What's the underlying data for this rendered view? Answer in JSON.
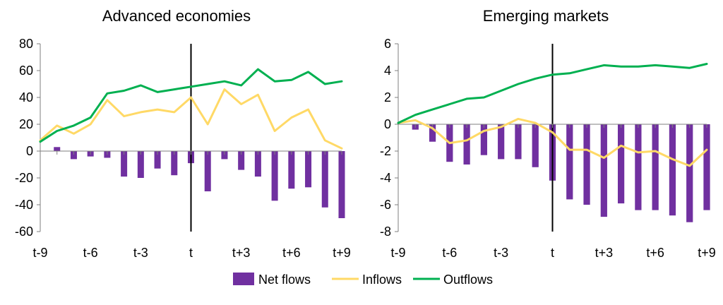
{
  "colors": {
    "net": "#7030a0",
    "inflows": "#ffd966",
    "outflows": "#00b050"
  },
  "legend": {
    "net": "Net flows",
    "inflows": "Inflows",
    "outflows": "Outflows"
  },
  "chart_data": [
    {
      "type": "bar",
      "title": "Advanced economies",
      "x": [
        "t-9",
        "t-8",
        "t-7",
        "t-6",
        "t-5",
        "t-4",
        "t-3",
        "t-2",
        "t-1",
        "t",
        "t+1",
        "t+2",
        "t+3",
        "t+4",
        "t+5",
        "t+6",
        "t+7",
        "t+8",
        "t+9"
      ],
      "xtick_labels": [
        "t-9",
        "t-6",
        "t-3",
        "t",
        "t+3",
        "t+6",
        "t+9"
      ],
      "ylim": [
        -60,
        80
      ],
      "yticks": [
        80,
        60,
        40,
        20,
        0,
        -20,
        -40,
        -60
      ],
      "event_line": "t",
      "series": [
        {
          "name": "Net flows",
          "type": "bar",
          "values": [
            null,
            3,
            -6,
            -4,
            -5,
            -19,
            -20,
            -13,
            -18,
            -9,
            -30,
            -6,
            -14,
            -19,
            -37,
            -28,
            -27,
            -42,
            -50
          ]
        },
        {
          "name": "Inflows",
          "type": "line",
          "values": [
            8,
            19,
            13,
            20,
            38,
            26,
            29,
            31,
            29,
            40,
            20,
            46,
            35,
            42,
            15,
            25,
            31,
            8,
            2
          ]
        },
        {
          "name": "Outflows",
          "type": "line",
          "values": [
            7,
            15,
            19,
            25,
            43,
            45,
            49,
            44,
            46,
            48,
            50,
            52,
            49,
            61,
            52,
            53,
            59,
            50,
            52
          ]
        }
      ]
    },
    {
      "type": "bar",
      "title": "Emerging markets",
      "x": [
        "t-9",
        "t-8",
        "t-7",
        "t-6",
        "t-5",
        "t-4",
        "t-3",
        "t-2",
        "t-1",
        "t",
        "t+1",
        "t+2",
        "t+3",
        "t+4",
        "t+5",
        "t+6",
        "t+7",
        "t+8",
        "t+9"
      ],
      "xtick_labels": [
        "t-9",
        "t-6",
        "t-3",
        "t",
        "t+3",
        "t+6",
        "t+9"
      ],
      "ylim": [
        -8,
        6
      ],
      "yticks": [
        6,
        4,
        2,
        0,
        -2,
        -4,
        -6,
        -8
      ],
      "event_line": "t",
      "series": [
        {
          "name": "Net flows",
          "type": "bar",
          "values": [
            null,
            -0.4,
            -1.3,
            -2.8,
            -3.0,
            -2.3,
            -2.6,
            -2.6,
            -3.2,
            -4.2,
            -5.6,
            -6.0,
            -6.9,
            -5.9,
            -6.4,
            -6.4,
            -6.8,
            -7.3,
            -6.4
          ]
        },
        {
          "name": "Inflows",
          "type": "line",
          "values": [
            0.1,
            0.3,
            -0.3,
            -1.4,
            -1.2,
            -0.5,
            -0.2,
            0.4,
            0.1,
            -0.6,
            -1.9,
            -1.9,
            -2.5,
            -1.6,
            -2.1,
            -2.0,
            -2.6,
            -3.1,
            -1.9
          ]
        },
        {
          "name": "Outflows",
          "type": "line",
          "values": [
            0.1,
            0.7,
            1.1,
            1.5,
            1.9,
            2.0,
            2.5,
            3.0,
            3.4,
            3.7,
            3.8,
            4.1,
            4.4,
            4.3,
            4.3,
            4.4,
            4.3,
            4.2,
            4.5
          ]
        }
      ]
    }
  ]
}
